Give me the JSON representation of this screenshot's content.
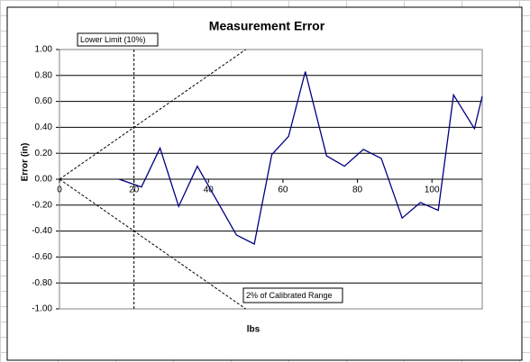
{
  "chart_data": {
    "type": "line",
    "title": "Measurement Error",
    "x_label": "lbs",
    "y_label": "Error (in)",
    "annotations": [
      {
        "text": "Lower Limit (10%)"
      },
      {
        "text": "2% of Calibrated Range"
      }
    ],
    "xlim": [
      0,
      113.5
    ],
    "xticks": [
      0,
      20,
      40,
      60,
      80,
      100
    ],
    "ylim": [
      -1,
      1
    ],
    "yticks": [
      {
        "value": 1,
        "label": "1.00"
      },
      {
        "value": 0.8,
        "label": "0.80"
      },
      {
        "value": 0.6,
        "label": "0.60"
      },
      {
        "value": 0.4,
        "label": "0.40"
      },
      {
        "value": 0.2,
        "label": "0.20"
      },
      {
        "value": 0,
        "label": "0.00"
      },
      {
        "value": -0.2,
        "label": "-0.20"
      },
      {
        "value": -0.4,
        "label": "-0.40"
      },
      {
        "value": -0.6,
        "label": "-0.60"
      },
      {
        "value": -0.8,
        "label": "-0.80"
      },
      {
        "value": -1,
        "label": "-1.00"
      }
    ],
    "grid": true,
    "series": [
      {
        "color": "#000080",
        "dashed": false,
        "x": [
          16,
          22,
          27,
          32,
          37,
          47.5,
          52.3,
          57,
          61.5,
          66,
          71.7,
          76.5,
          81.6,
          86.4,
          92,
          96.9,
          101.7,
          105.8,
          111.4,
          113.5
        ],
        "values": [
          0.0,
          -0.06,
          0.24,
          -0.21,
          0.1,
          -0.43,
          -0.5,
          0.19,
          0.33,
          0.83,
          0.18,
          0.1,
          0.23,
          0.16,
          -0.3,
          -0.18,
          -0.24,
          0.65,
          0.39,
          0.64
        ]
      },
      {
        "color": "#000000",
        "dashed": true,
        "x": [
          0,
          50
        ],
        "values": [
          0,
          1
        ]
      },
      {
        "color": "#000000",
        "dashed": true,
        "x": [
          0,
          50
        ],
        "values": [
          0,
          -1
        ]
      },
      {
        "color": "#000000",
        "dashed": true,
        "x": [
          20,
          20
        ],
        "values": [
          -1,
          1
        ]
      }
    ]
  }
}
